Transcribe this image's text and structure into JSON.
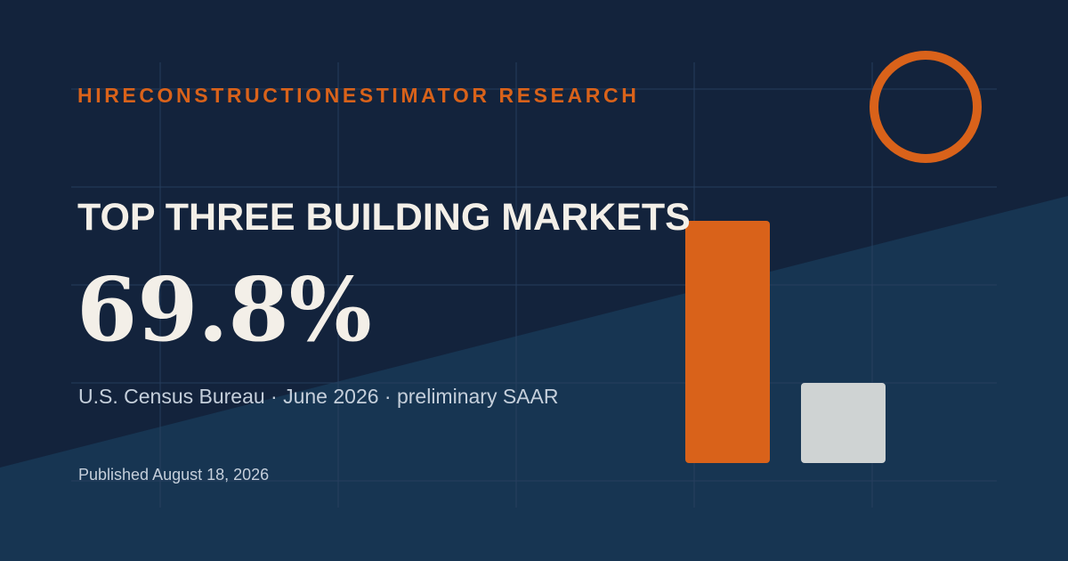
{
  "brand": "HIRECONSTRUCTIONESTIMATOR RESEARCH",
  "headline": "TOP THREE BUILDING MARKETS",
  "stat": "69.8%",
  "source_line": "U.S. Census Bureau · June 2026 · preliminary SAAR",
  "published": "Published August 18, 2026",
  "colors": {
    "background": "#13233c",
    "diagonal_panel": "#173552",
    "accent": "#d9621a",
    "neutral_bar": "#cfd3d3",
    "text": "#f3efe8",
    "muted_text": "#c5cfdb"
  },
  "decor": {
    "ring_icon": "circle-outline",
    "bars": [
      {
        "value": 1.0,
        "color": "#d9621a"
      },
      {
        "value": 0.33,
        "color": "#cfd3d3"
      }
    ]
  }
}
